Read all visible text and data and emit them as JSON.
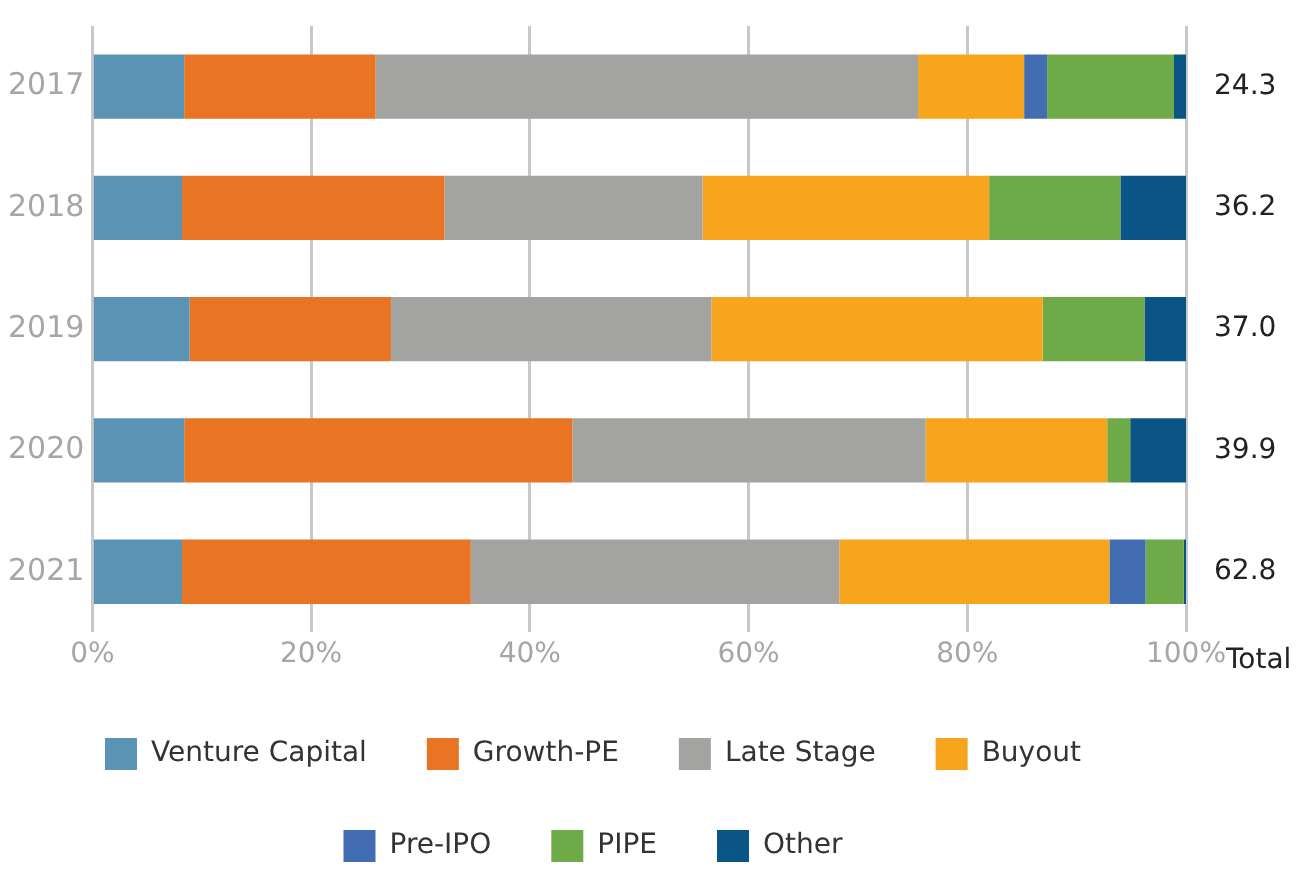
{
  "chart_data": {
    "type": "bar",
    "orientation": "horizontal",
    "stacked": true,
    "categories": [
      "2017",
      "2018",
      "2019",
      "2020",
      "2021"
    ],
    "series": [
      {
        "name": "Venture Capital",
        "color": "#5b93b5",
        "values": [
          8.4,
          8.2,
          8.9,
          8.4,
          8.2
        ]
      },
      {
        "name": "Growth-PE",
        "color": "#e87424",
        "values": [
          17.5,
          24.0,
          18.4,
          35.5,
          26.4
        ]
      },
      {
        "name": "Late Stage",
        "color": "#a3a3a1",
        "values": [
          49.6,
          23.6,
          29.3,
          32.3,
          33.7
        ]
      },
      {
        "name": "Buyout",
        "color": "#f7a51d",
        "values": [
          9.7,
          26.2,
          30.3,
          16.6,
          24.7
        ]
      },
      {
        "name": "Pre-IPO",
        "color": "#426db2",
        "values": [
          2.1,
          0,
          0,
          0,
          3.3
        ]
      },
      {
        "name": "PIPE",
        "color": "#6eaa48",
        "values": [
          11.6,
          12.0,
          9.3,
          2.1,
          3.5
        ]
      },
      {
        "name": "Other",
        "color": "#0b5486",
        "values": [
          1.1,
          6.0,
          3.8,
          5.1,
          0.2
        ]
      }
    ],
    "xlim": [
      0,
      100
    ],
    "xticks": [
      {
        "value": 0,
        "label": "0%"
      },
      {
        "value": 20,
        "label": "20%"
      },
      {
        "value": 40,
        "label": "40%"
      },
      {
        "value": 60,
        "label": "60%"
      },
      {
        "value": 80,
        "label": "80%"
      },
      {
        "value": 100,
        "label": "100%"
      }
    ],
    "annotations": [
      "24.3",
      "36.2",
      "37.0",
      "39.9",
      "62.8",
      "Total"
    ],
    "grid": "x",
    "legend": "bottom"
  }
}
